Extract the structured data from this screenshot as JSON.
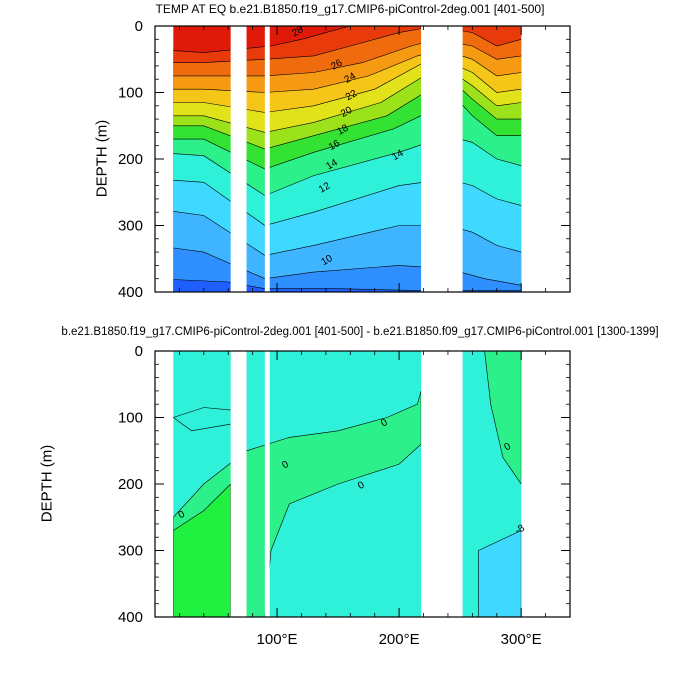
{
  "window": {
    "width_label": "",
    "background": "#ffffff"
  },
  "chart_data": [
    {
      "type": "heatmap",
      "title": "TEMP AT EQ b.e21.B1850.f19_g17.CMIP6-piControl-2deg.001 [401-500]",
      "xlabel": "",
      "ylabel": "DEPTH (m)",
      "xlim": [
        0,
        340
      ],
      "ylim": [
        0,
        400
      ],
      "y_reversed": true,
      "x_ticks": [
        100,
        200,
        300
      ],
      "x_tick_labels": [
        "",
        "",
        ""
      ],
      "y_ticks": [
        0,
        100,
        200,
        300,
        400
      ],
      "y_tick_labels": [
        "0",
        "100",
        "200",
        "300",
        "400"
      ],
      "grid": false,
      "contour_levels": [
        10,
        12,
        14,
        16,
        18,
        20,
        22,
        24,
        26,
        28
      ],
      "contour_labels": [
        {
          "text": "28",
          "x": 118,
          "y": 12
        },
        {
          "text": "26",
          "x": 150,
          "y": 62
        },
        {
          "text": "24",
          "x": 161,
          "y": 82
        },
        {
          "text": "22",
          "x": 162,
          "y": 108
        },
        {
          "text": "20",
          "x": 158,
          "y": 133
        },
        {
          "text": "18",
          "x": 155,
          "y": 160
        },
        {
          "text": "16",
          "x": 148,
          "y": 183
        },
        {
          "text": "14",
          "x": 146,
          "y": 212
        },
        {
          "text": "14",
          "x": 200,
          "y": 198
        },
        {
          "text": "12",
          "x": 140,
          "y": 247
        },
        {
          "text": "10",
          "x": 142,
          "y": 356
        }
      ],
      "colors": [
        "#1f3fff",
        "#1f5fff",
        "#2f8fff",
        "#3fb5ff",
        "#3fd8ff",
        "#2ff0d8",
        "#2cf08a",
        "#33e233",
        "#9be21a",
        "#e2e21a",
        "#f5c518",
        "#f59a12",
        "#f06a0e",
        "#e83a0a",
        "#e01a08"
      ],
      "land_gaps_lon": [
        [
          62,
          75
        ],
        [
          90,
          94
        ],
        [
          218,
          252
        ]
      ]
    },
    {
      "type": "heatmap",
      "title": "b.e21.B1850.f19_g17.CMIP6-piControl-2deg.001 [401-500] - b.e21.B1850.f09_g17.CMIP6-piControl.001 [1300-1399]",
      "xlabel": "",
      "ylabel": "DEPTH (m)",
      "xlim": [
        0,
        340
      ],
      "ylim": [
        0,
        400
      ],
      "y_reversed": true,
      "x_ticks": [
        100,
        200,
        300
      ],
      "x_tick_labels": [
        "100°E",
        "200°E",
        "300°E"
      ],
      "y_ticks": [
        0,
        100,
        200,
        300,
        400
      ],
      "y_tick_labels": [
        "0",
        "100",
        "200",
        "300",
        "400"
      ],
      "grid": false,
      "contour_labels": [
        {
          "text": "0",
          "x": 189,
          "y": 112
        },
        {
          "text": "0",
          "x": 108,
          "y": 175
        },
        {
          "text": "0",
          "x": 170,
          "y": 206
        },
        {
          "text": "0",
          "x": 23,
          "y": 250
        },
        {
          "text": "0",
          "x": 290,
          "y": 148
        },
        {
          "text": "-8",
          "x": 300,
          "y": 272
        }
      ],
      "colors": [
        "#2ff0d8",
        "#2cf08a",
        "#20f040",
        "#3fd8ff",
        "#d8f020"
      ],
      "land_gaps_lon": [
        [
          62,
          75
        ],
        [
          90,
          94
        ],
        [
          218,
          252
        ]
      ]
    }
  ]
}
